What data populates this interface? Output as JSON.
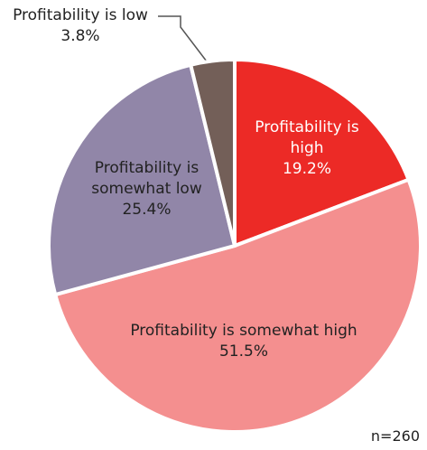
{
  "chart_data": {
    "type": "pie",
    "categories": [
      "Profitability is high",
      "Profitability is somewhat high",
      "Profitability is somewhat low",
      "Profitability is low"
    ],
    "values": [
      19.2,
      51.5,
      25.4,
      3.8
    ],
    "value_labels": [
      "19.2%",
      "51.5%",
      "25.4%",
      "3.8%"
    ],
    "colors": [
      "#ec2a26",
      "#f48f8f",
      "#9186a8",
      "#735f58"
    ],
    "annotation": "n=260"
  }
}
